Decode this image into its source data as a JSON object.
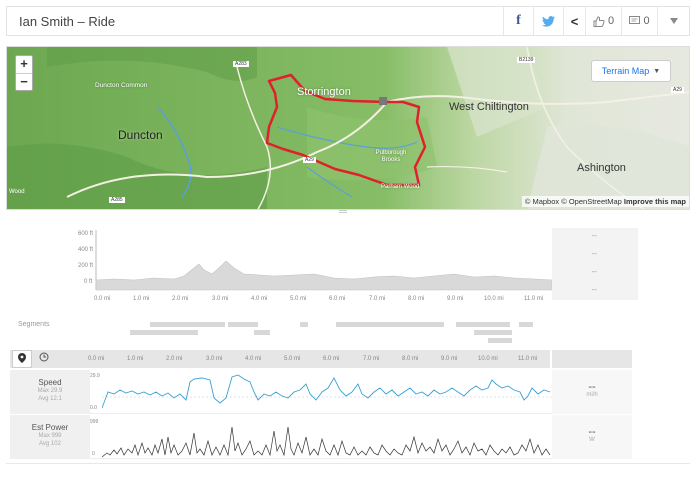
{
  "header": {
    "title": "Ian Smith – Ride",
    "facebook_icon": "f",
    "twitter_icon": "twitter-bird",
    "share_icon": "<",
    "kudos_count": "0",
    "comment_count": "0"
  },
  "map": {
    "zoom_in": "+",
    "zoom_out": "−",
    "terrain_button": "Terrain Map",
    "labels": {
      "storrington": "Storrington",
      "duncton_common": "Duncton Common",
      "duncton": "Duncton",
      "west_chiltington": "West Chiltington",
      "pulborough": "Pulborough Brooks",
      "parham": "Parham Wood",
      "ashington": "Ashington",
      "wood": "Wood",
      "a283": "A283",
      "a285": "A285",
      "a29": "A29",
      "a29b": "A29",
      "b2139": "B2139"
    },
    "attribution_a": "© Mapbox © OpenStreetMap",
    "attribution_b": "Improve this map",
    "route_color": "#e0202a"
  },
  "elevation": {
    "y_labels": [
      "600 ft",
      "400 ft",
      "200 ft",
      "0 ft"
    ],
    "x_labels": [
      "0.0 mi",
      "1.0 mi",
      "2.0 mi",
      "3.0 mi",
      "4.0 mi",
      "5.0 mi",
      "6.0 mi",
      "7.0 mi",
      "8.0 mi",
      "9.0 mi",
      "10.0 mi",
      "11.0 mi"
    ],
    "stats": [
      "--",
      "--",
      "--",
      "--"
    ]
  },
  "segments_label": "Segments",
  "charts": {
    "pin_icon": "location-pin",
    "clock_icon": "clock",
    "speed": {
      "name": "Speed",
      "max": "Max 29.9",
      "avg": "Avg 12.1",
      "value": "--",
      "unit": "mi/h",
      "ytop": "29.9",
      "ybot": "0.0"
    },
    "power": {
      "name": "Est Power",
      "max": "Max 999",
      "avg": "Avg 102",
      "value": "--",
      "unit": "W",
      "ytop": "999",
      "ybot": "0"
    }
  }
}
